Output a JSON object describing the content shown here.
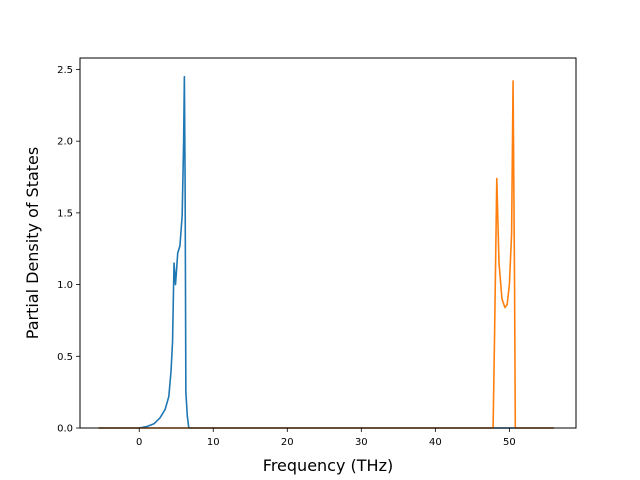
{
  "chart_data": {
    "type": "line",
    "title": "",
    "xlabel": "Frequency (THz)",
    "ylabel": "Partial Density of States",
    "xlim": [
      -8.0,
      59.0
    ],
    "ylim": [
      0.0,
      2.58
    ],
    "xticks": [
      {
        "value": 0,
        "label": "0"
      },
      {
        "value": 10,
        "label": "10"
      },
      {
        "value": 20,
        "label": "20"
      },
      {
        "value": 30,
        "label": "30"
      },
      {
        "value": 40,
        "label": "40"
      },
      {
        "value": 50,
        "label": "50"
      }
    ],
    "yticks": [
      {
        "value": 0.0,
        "label": "0.0"
      },
      {
        "value": 0.5,
        "label": "0.5"
      },
      {
        "value": 1.0,
        "label": "1.0"
      },
      {
        "value": 1.5,
        "label": "1.5"
      },
      {
        "value": 2.0,
        "label": "2.0"
      },
      {
        "value": 2.5,
        "label": "2.5"
      }
    ],
    "grid": false,
    "legend": "none",
    "series": [
      {
        "color": "#1f77b4",
        "points": [
          [
            -5.5,
            0.0
          ],
          [
            0.0,
            0.0
          ],
          [
            1.0,
            0.01
          ],
          [
            2.0,
            0.03
          ],
          [
            2.8,
            0.07
          ],
          [
            3.5,
            0.13
          ],
          [
            4.0,
            0.22
          ],
          [
            4.3,
            0.4
          ],
          [
            4.5,
            0.6
          ],
          [
            4.7,
            1.15
          ],
          [
            4.9,
            1.0
          ],
          [
            5.2,
            1.22
          ],
          [
            5.5,
            1.27
          ],
          [
            5.8,
            1.48
          ],
          [
            6.0,
            2.0
          ],
          [
            6.1,
            2.45
          ],
          [
            6.2,
            1.7
          ],
          [
            6.3,
            0.25
          ],
          [
            6.5,
            0.08
          ],
          [
            6.7,
            0.0
          ],
          [
            10.0,
            0.0
          ],
          [
            20.0,
            0.0
          ],
          [
            30.0,
            0.0
          ],
          [
            40.0,
            0.0
          ],
          [
            50.0,
            0.0
          ],
          [
            56.0,
            0.0
          ]
        ]
      },
      {
        "color": "#ff7f0e",
        "points": [
          [
            -5.5,
            0.0
          ],
          [
            10.0,
            0.0
          ],
          [
            20.0,
            0.0
          ],
          [
            30.0,
            0.0
          ],
          [
            40.0,
            0.0
          ],
          [
            47.8,
            0.0
          ],
          [
            48.0,
            0.65
          ],
          [
            48.3,
            1.74
          ],
          [
            48.6,
            1.15
          ],
          [
            49.0,
            0.9
          ],
          [
            49.4,
            0.84
          ],
          [
            49.7,
            0.86
          ],
          [
            50.0,
            1.0
          ],
          [
            50.3,
            1.35
          ],
          [
            50.5,
            2.42
          ],
          [
            50.7,
            1.0
          ],
          [
            50.8,
            0.0
          ],
          [
            56.0,
            0.0
          ]
        ]
      }
    ]
  }
}
